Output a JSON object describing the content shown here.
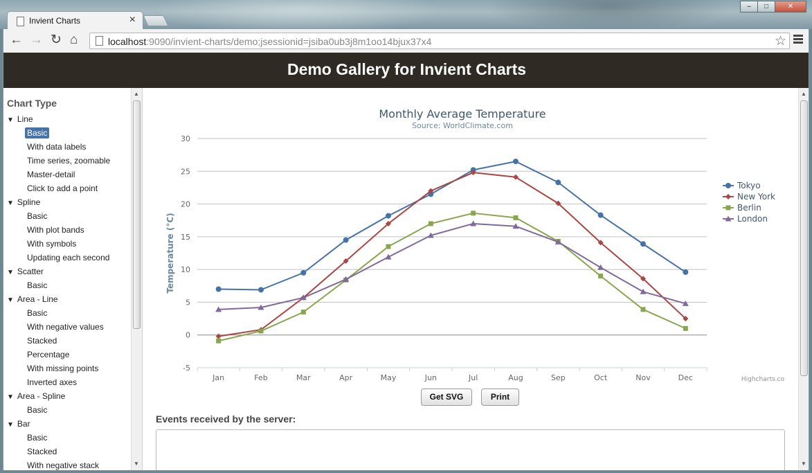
{
  "browser": {
    "tab_title": "Invient Charts",
    "tab_close": "×",
    "url_host": "localhost",
    "url_rest": ":9090/invient-charts/demo;jsessionid=jsiba0ub3j8m1oo14bjux37x4",
    "icons": {
      "back": "back-arrow-icon",
      "forward": "forward-arrow-icon",
      "reload": "reload-icon",
      "home": "home-icon",
      "star": "star-icon",
      "menu": "menu-icon"
    },
    "window_buttons": {
      "minimize": "–",
      "maximize": "□",
      "close": "✕"
    }
  },
  "header": {
    "title": "Demo Gallery for Invient Charts"
  },
  "sidebar": {
    "heading": "Chart Type",
    "categories": [
      {
        "label": "Line",
        "items": [
          "Basic",
          "With data labels",
          "Time series, zoomable",
          "Master-detail",
          "Click to add a point"
        ]
      },
      {
        "label": "Spline",
        "items": [
          "Basic",
          "With plot bands",
          "With symbols",
          "Updating each second"
        ]
      },
      {
        "label": "Scatter",
        "items": [
          "Basic"
        ]
      },
      {
        "label": "Area - Line",
        "items": [
          "Basic",
          "With negative values",
          "Stacked",
          "Percentage",
          "With missing points",
          "Inverted axes"
        ]
      },
      {
        "label": "Area - Spline",
        "items": [
          "Basic"
        ]
      },
      {
        "label": "Bar",
        "items": [
          "Basic",
          "Stacked",
          "With negative stack"
        ]
      }
    ],
    "selected": "Line / Basic"
  },
  "buttons": {
    "get_svg": "Get SVG",
    "print": "Print"
  },
  "events": {
    "label": "Events received by the server:"
  },
  "credits": "Highcharts.co",
  "chart_data": {
    "type": "line",
    "title": "Monthly Average Temperature",
    "subtitle": "Source: WorldClimate.com",
    "ylabel": "Temperature (°C)",
    "xlabel": "",
    "ylim": [
      -5,
      30
    ],
    "ytick_step": 5,
    "categories": [
      "Jan",
      "Feb",
      "Mar",
      "Apr",
      "May",
      "Jun",
      "Jul",
      "Aug",
      "Sep",
      "Oct",
      "Nov",
      "Dec"
    ],
    "grid": true,
    "legend_position": "right",
    "series": [
      {
        "name": "Tokyo",
        "color": "#4572a7",
        "marker": "circle",
        "values": [
          7.0,
          6.9,
          9.5,
          14.5,
          18.2,
          21.5,
          25.2,
          26.5,
          23.3,
          18.3,
          13.9,
          9.6
        ]
      },
      {
        "name": "New York",
        "color": "#aa4643",
        "marker": "diamond",
        "values": [
          -0.2,
          0.8,
          5.7,
          11.3,
          17.0,
          22.0,
          24.8,
          24.1,
          20.1,
          14.1,
          8.6,
          2.5
        ]
      },
      {
        "name": "Berlin",
        "color": "#89a54e",
        "marker": "square",
        "values": [
          -0.9,
          0.6,
          3.5,
          8.4,
          13.5,
          17.0,
          18.6,
          17.9,
          14.3,
          9.0,
          3.9,
          1.0
        ]
      },
      {
        "name": "London",
        "color": "#80699b",
        "marker": "triangle",
        "values": [
          3.9,
          4.2,
          5.7,
          8.5,
          11.9,
          15.2,
          17.0,
          16.6,
          14.2,
          10.3,
          6.6,
          4.8
        ]
      }
    ]
  }
}
